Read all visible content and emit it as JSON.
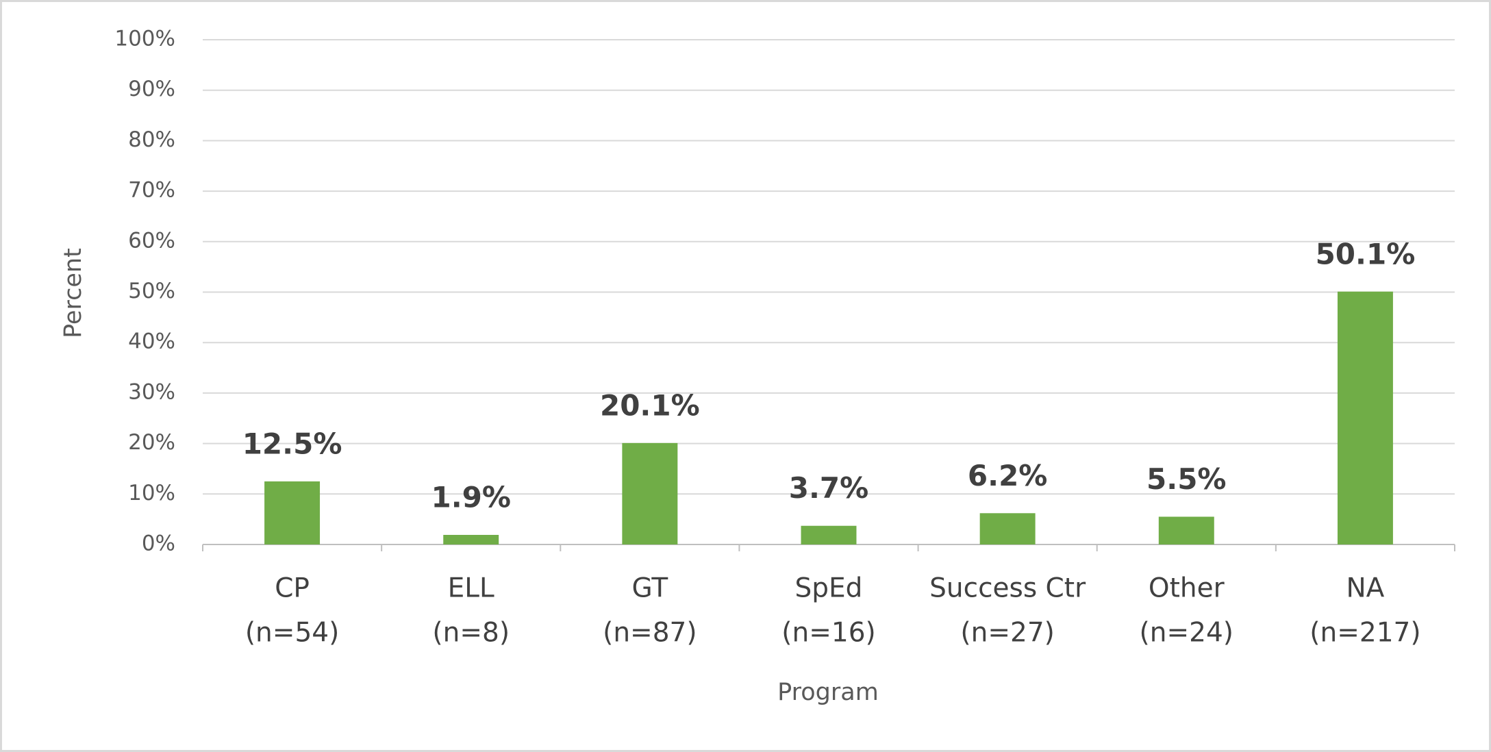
{
  "chart_data": {
    "type": "bar",
    "x_label": "Program",
    "y_label": "Percent",
    "categories": [
      [
        "CP",
        "(n=54)"
      ],
      [
        "ELL",
        "(n=8)"
      ],
      [
        "GT",
        "(n=87)"
      ],
      [
        "SpEd",
        "(n=16)"
      ],
      [
        "Success Ctr",
        "(n=27)"
      ],
      [
        "Other",
        "(n=24)"
      ],
      [
        "NA",
        "(n=217)"
      ]
    ],
    "values": [
      12.5,
      1.9,
      20.1,
      3.7,
      6.2,
      5.5,
      50.1
    ],
    "value_labels": [
      "12.5%",
      "1.9%",
      "20.1%",
      "3.7%",
      "6.2%",
      "5.5%",
      "50.1%"
    ],
    "color": "#70ad47",
    "ylim": [
      0,
      100
    ],
    "yticks": [
      {
        "value": 0,
        "label": "0%"
      },
      {
        "value": 10,
        "label": "10%"
      },
      {
        "value": 20,
        "label": "20%"
      },
      {
        "value": 30,
        "label": "30%"
      },
      {
        "value": 40,
        "label": "40%"
      },
      {
        "value": 50,
        "label": "50%"
      },
      {
        "value": 60,
        "label": "60%"
      },
      {
        "value": 70,
        "label": "70%"
      },
      {
        "value": 80,
        "label": "80%"
      },
      {
        "value": 90,
        "label": "90%"
      },
      {
        "value": 100,
        "label": "100%"
      }
    ],
    "grid": true
  }
}
